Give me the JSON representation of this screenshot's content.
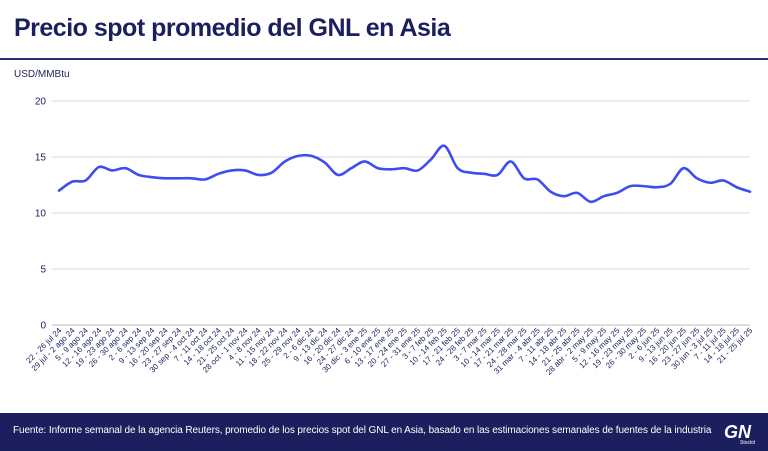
{
  "header": {
    "title": "Precio spot promedio del GNL en Asia",
    "unit": "USD/MMBtu"
  },
  "footer": {
    "source": "Fuente: Informe semanal de la agencia Reuters, promedio de los precios spot del GNL en Asia, basado en las estimaciones semanales de fuentes de la industria",
    "logo_text": "GN",
    "logo_sub": "Stockit"
  },
  "colors": {
    "line": "#3f4df0",
    "title": "#1b1f5e",
    "footer_bg": "#1b1f5e"
  },
  "chart_data": {
    "type": "line",
    "ylim": [
      0,
      20
    ],
    "yticks": [
      0,
      5,
      10,
      15,
      20
    ],
    "grid": true,
    "categories": [
      "22 - 26 jul 24",
      "29 jul - 2 ago 24",
      "5 - 9 ago 24",
      "12 - 16 ago 24",
      "19 - 23 ago 24",
      "26 - 30 ago 24",
      "2 - 6 sep 24",
      "9 - 13 sep 24",
      "16 - 20 sep 24",
      "23 - 27 sep 24",
      "30 sep - 4 oct 24",
      "7 - 11 oct 24",
      "14 - 18 oct 24",
      "21 - 25 oct 24",
      "28 oct - 1 nov 24",
      "4 - 8 nov 24",
      "11 - 15 nov 24",
      "18 - 22 nov 24",
      "25 - 29 nov 24",
      "2 - 6 dic 24",
      "9 - 13 dic 24",
      "16 - 20 dic 24",
      "24 - 27 dic 24",
      "30 dic - 3 ene 25",
      "6 - 10 ene 25",
      "13 - 17 ene 25",
      "20 - 24 ene 25",
      "27 - 31 ene 25",
      "3 - 7 feb 25",
      "10 - 14 feb 25",
      "17 - 21 feb 25",
      "24 - 28 feb 25",
      "3 - 7 mar 25",
      "10 - 14 mar 25",
      "17 - 21 mar 25",
      "24 - 28 mar 25",
      "31 mar - 4 abr 25",
      "7 - 11 abr 25",
      "14 - 18 abr 25",
      "21 - 25 abr 25",
      "28 abr - 2 may 25",
      "5 - 9 may 25",
      "12 - 16 may 25",
      "19 - 23 may 25",
      "26 - 30 may 25",
      "2 - 6 jun 25",
      "9 - 13 jun 25",
      "16 - 20 jun 25",
      "23 - 27 jun 25",
      "30 jun - 3 jul 25",
      "7 - 11 jul 25",
      "14 - 18 jul 25",
      "21 - 25 jul 25"
    ],
    "series": [
      {
        "values": [
          12.0,
          12.8,
          12.9,
          14.1,
          13.8,
          14.0,
          13.4,
          13.2,
          13.1,
          13.1,
          13.1,
          13.0,
          13.5,
          13.8,
          13.8,
          13.4,
          13.6,
          14.6,
          15.1,
          15.1,
          14.5,
          13.4,
          14.0,
          14.6,
          14.0,
          13.9,
          14.0,
          13.8,
          14.8,
          16.0,
          14.0,
          13.6,
          13.5,
          13.4,
          14.6,
          13.1,
          13.0,
          11.9,
          11.5,
          11.8,
          11.0,
          11.5,
          11.8,
          12.4,
          12.4,
          12.3,
          12.6,
          14.0,
          13.1,
          12.7,
          12.9,
          12.3,
          11.9
        ]
      }
    ]
  }
}
